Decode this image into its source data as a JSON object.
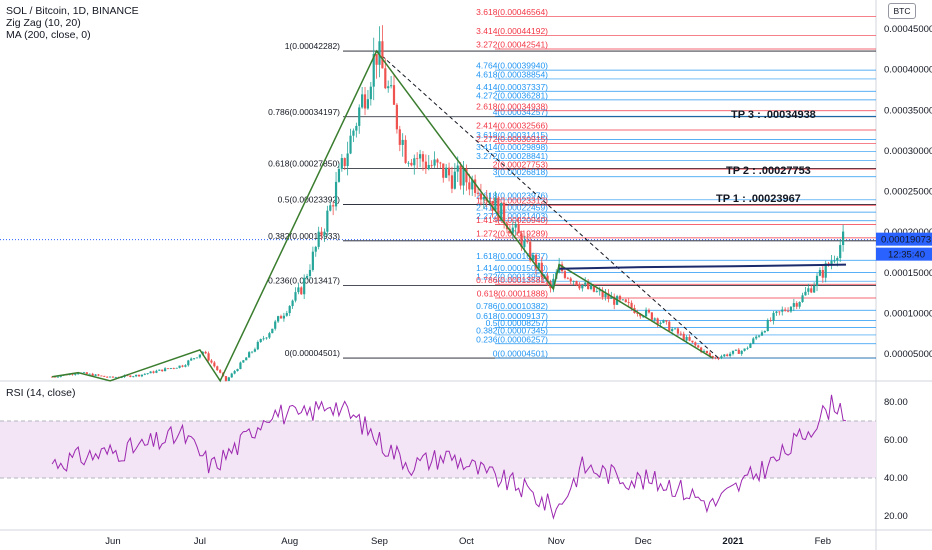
{
  "header": {
    "title": "SOL / Bitcoin, 1D, BINANCE",
    "indicator1": "Zig Zag (10, 20)",
    "indicator2": "MA (200, close, 0)",
    "currency": "BTC"
  },
  "rsi_title": "RSI (14, close)",
  "price_tag": {
    "price": "0.00019073",
    "countdown": "12:35:40"
  },
  "colors": {
    "candle_up": "#26a69a",
    "candle_down": "#ef5350",
    "zigzag": "#3a7d2e",
    "ma": "#1b2a6b",
    "fib_blue": "#2196f3",
    "fib_red": "#f23645",
    "rsi_line": "#9c27b0",
    "rsi_band": "#f3e5f5",
    "price_tag": "#2962ff"
  },
  "chart_data": [
    {
      "type": "candlestick",
      "title": "SOL / Bitcoin, 1D, BINANCE",
      "y_axis_ticks": [
        "0.00045000",
        "0.00040000",
        "0.00035000",
        "0.00030000",
        "0.00025000",
        "0.00020000",
        "0.00015000",
        "0.00010000",
        "0.00005000"
      ],
      "x_axis_ticks": [
        "Jun",
        "Jul",
        "Aug",
        "Sep",
        "Oct",
        "Nov",
        "Dec",
        "2021",
        "Feb"
      ],
      "ylim": [
        2e-05,
        0.00047
      ],
      "price_path": [
        [
          "2020-05-11",
          2.2e-05
        ],
        [
          "2020-05-20",
          2.7e-05
        ],
        [
          "2020-05-31",
          2.1e-05
        ],
        [
          "2020-06-10",
          2.4e-05
        ],
        [
          "2020-06-25",
          3.6e-05
        ],
        [
          "2020-07-02",
          5.3e-05
        ],
        [
          "2020-07-10",
          1.7e-05
        ],
        [
          "2020-07-25",
          7.8e-05
        ],
        [
          "2020-08-05",
          0.00013
        ],
        [
          "2020-08-15",
          0.00023
        ],
        [
          "2020-08-31",
          0.00042282
        ],
        [
          "2020-09-10",
          0.0003
        ],
        [
          "2020-09-25",
          0.00027
        ],
        [
          "2020-10-05",
          0.00026
        ],
        [
          "2020-10-20",
          0.00019
        ],
        [
          "2020-10-30",
          0.00013
        ],
        [
          "2020-11-02",
          0.000155
        ],
        [
          "2020-11-12",
          0.00013
        ],
        [
          "2020-11-25",
          0.00011
        ],
        [
          "2020-12-05",
          9.5e-05
        ],
        [
          "2020-12-15",
          7e-05
        ],
        [
          "2020-12-25",
          4.501e-05
        ],
        [
          "2021-01-05",
          5.5e-05
        ],
        [
          "2021-01-15",
          9.5e-05
        ],
        [
          "2021-01-25",
          0.00012
        ],
        [
          "2021-02-03",
          0.00016
        ],
        [
          "2021-02-08",
          0.00019073
        ]
      ],
      "zigzag": [
        [
          "2020-05-11",
          2.2e-05
        ],
        [
          "2020-05-20",
          2.7e-05
        ],
        [
          "2020-05-31",
          1.7e-05
        ],
        [
          "2020-07-01",
          5.5e-05
        ],
        [
          "2020-07-08",
          1.7e-05
        ],
        [
          "2020-08-31",
          0.00042282
        ],
        [
          "2020-10-31",
          0.00013
        ],
        [
          "2020-11-02",
          0.00016
        ],
        [
          "2020-12-25",
          4.501e-05
        ]
      ],
      "fib_sets": [
        {
          "name": "retracement",
          "levels": [
            {
              "label": "1(0.00042282)",
              "value": 0.00042282
            },
            {
              "label": "0.786(0.00034197)",
              "value": 0.00034197
            },
            {
              "label": "0.618(0.00027850)",
              "value": 0.0002785
            },
            {
              "label": "0.5(0.00023392)",
              "value": 0.00023392
            },
            {
              "label": "0.382(0.00018933)",
              "value": 0.00018933
            },
            {
              "label": "0.236(0.00013417)",
              "value": 0.00013417
            },
            {
              "label": "0(0.00004501)",
              "value": 4.501e-05
            }
          ]
        },
        {
          "name": "extension",
          "levels": [
            {
              "label": "3.618(0.00046564)",
              "value": 0.00046564,
              "color": "red"
            },
            {
              "label": "3.414(0.00044192)",
              "value": 0.00044192,
              "color": "red"
            },
            {
              "label": "3.272(0.00042541)",
              "value": 0.00042541,
              "color": "red"
            },
            {
              "label": "4.764(0.00039940)",
              "value": 0.0003994,
              "color": "blue"
            },
            {
              "label": "4.618(0.00038854)",
              "value": 0.00038854,
              "color": "blue"
            },
            {
              "label": "4.414(0.00037337)",
              "value": 0.00037337,
              "color": "blue"
            },
            {
              "label": "4.272(0.00036281)",
              "value": 0.00036281,
              "color": "blue"
            },
            {
              "label": "4(0.00034257)",
              "value": 0.00034257,
              "color": "blue"
            },
            {
              "label": "2.618(0.00034938)",
              "value": 0.00034938,
              "color": "red"
            },
            {
              "label": "2.414(0.00032566)",
              "value": 0.00032566,
              "color": "red"
            },
            {
              "label": "3.618(0.00031415)",
              "value": 0.00031415,
              "color": "blue"
            },
            {
              "label": "2.272(0.00030915)",
              "value": 0.00030915,
              "color": "red"
            },
            {
              "label": "3.414(0.00029898)",
              "value": 0.00029898,
              "color": "blue"
            },
            {
              "label": "3.272(0.00028841)",
              "value": 0.00028841,
              "color": "blue"
            },
            {
              "label": "2(0.00027753)",
              "value": 0.00027753,
              "color": "red"
            },
            {
              "label": "3(0.00026818)",
              "value": 0.00026818,
              "color": "blue"
            },
            {
              "label": "2.618(0.00023976)",
              "value": 0.00023976,
              "color": "blue"
            },
            {
              "label": "1.618(0.00023312)",
              "value": 0.00023312,
              "color": "red"
            },
            {
              "label": "2.414(0.00022459)",
              "value": 0.00022459,
              "color": "blue"
            },
            {
              "label": "2.272(0.00021403)",
              "value": 0.00021403,
              "color": "blue"
            },
            {
              "label": "1.414(0.00020940)",
              "value": 0.0002094,
              "color": "red"
            },
            {
              "label": "1.272(0.00019289)",
              "value": 0.00019289,
              "color": "red"
            },
            {
              "label": "1.618(0.00016537)",
              "value": 0.00016537,
              "color": "blue"
            },
            {
              "label": "1.414(0.00015020)",
              "value": 0.0001502,
              "color": "blue"
            },
            {
              "label": "1.272(0.00013959)",
              "value": 0.00013959,
              "color": "blue"
            },
            {
              "label": "0.786(0.00013581)",
              "value": 0.00013581,
              "color": "red"
            },
            {
              "label": "0.618(0.00011888)",
              "value": 0.00011888,
              "color": "red"
            },
            {
              "label": "0.786(0.00010382)",
              "value": 0.00010382,
              "color": "blue"
            },
            {
              "label": "0.618(0.00009137)",
              "value": 9.137e-05,
              "color": "blue"
            },
            {
              "label": "0.5(0.00008257)",
              "value": 8.257e-05,
              "color": "blue"
            },
            {
              "label": "0.382(0.00007345)",
              "value": 7.345e-05,
              "color": "blue"
            },
            {
              "label": "0.236(0.00006257)",
              "value": 6.257e-05,
              "color": "blue"
            },
            {
              "label": "0(0.00004501)",
              "value": 4.501e-05,
              "color": "blue"
            }
          ]
        }
      ],
      "annotations": [
        {
          "text": "TP 3 : .00034938",
          "value": 0.00034938
        },
        {
          "text": "TP 2 : .00027753",
          "value": 0.00027753
        },
        {
          "text": "TP 1 : .00023967",
          "value": 0.00023967
        }
      ]
    },
    {
      "type": "line",
      "title": "RSI (14, close)",
      "y_axis_ticks": [
        "80.00",
        "60.00",
        "40.00",
        "20.00"
      ],
      "ylim": [
        13,
        90
      ],
      "bands": [
        40,
        70
      ],
      "values": [
        [
          "2020-05-11",
          48
        ],
        [
          "2020-05-25",
          52
        ],
        [
          "2020-06-10",
          56
        ],
        [
          "2020-06-25",
          63
        ],
        [
          "2020-07-05",
          46
        ],
        [
          "2020-07-15",
          58
        ],
        [
          "2020-07-25",
          75
        ],
        [
          "2020-08-05",
          72
        ],
        [
          "2020-08-15",
          80
        ],
        [
          "2020-08-25",
          70
        ],
        [
          "2020-09-02",
          58
        ],
        [
          "2020-09-12",
          47
        ],
        [
          "2020-09-25",
          52
        ],
        [
          "2020-10-08",
          42
        ],
        [
          "2020-10-20",
          35
        ],
        [
          "2020-11-01",
          23
        ],
        [
          "2020-11-10",
          46
        ],
        [
          "2020-11-25",
          40
        ],
        [
          "2020-12-10",
          37
        ],
        [
          "2020-12-25",
          26
        ],
        [
          "2021-01-05",
          38
        ],
        [
          "2021-01-18",
          52
        ],
        [
          "2021-01-30",
          70
        ],
        [
          "2021-02-05",
          80
        ],
        [
          "2021-02-09",
          74
        ]
      ]
    }
  ]
}
